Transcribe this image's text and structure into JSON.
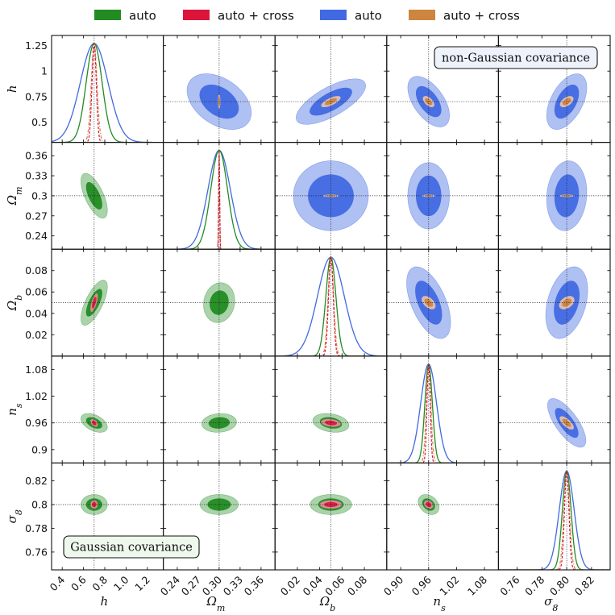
{
  "chart_data": {
    "type": "corner",
    "legend": [
      {
        "label": "auto",
        "color": "#228b22"
      },
      {
        "label": "auto + cross",
        "color": "#dc143c"
      },
      {
        "label": "auto",
        "color": "#4169e1"
      },
      {
        "label": "auto + cross",
        "color": "#cd853f"
      }
    ],
    "annotations": {
      "upper": "non-Gaussian covariance",
      "lower": "Gaussian covariance"
    },
    "parameters": [
      {
        "name": "h",
        "label": "h",
        "range": [
          0.3,
          1.35
        ],
        "fiducial": 0.7,
        "ticks": [
          "0.4",
          "0.6",
          "0.8",
          "1.0",
          "1.2"
        ],
        "tick_values": [
          0.4,
          0.6,
          0.8,
          1.0,
          1.2
        ],
        "yticks": [
          "0.5",
          "0.75",
          "1",
          "1.25"
        ],
        "ytick_values": [
          0.5,
          0.75,
          1.0,
          1.25
        ]
      },
      {
        "name": "Om",
        "label": "Ωm",
        "range": [
          0.22,
          0.38
        ],
        "fiducial": 0.3,
        "ticks": [
          "0.24",
          "0.27",
          "0.30",
          "0.33",
          "0.36"
        ],
        "tick_values": [
          0.24,
          0.27,
          0.3,
          0.33,
          0.36
        ],
        "yticks": [
          "0.24",
          "0.27",
          "0.3",
          "0.33",
          "0.36"
        ],
        "ytick_values": [
          0.24,
          0.27,
          0.3,
          0.33,
          0.36
        ]
      },
      {
        "name": "Ob",
        "label": "Ωb",
        "range": [
          0.0,
          0.1
        ],
        "fiducial": 0.05,
        "ticks": [
          "0.02",
          "0.04",
          "0.06",
          "0.08"
        ],
        "tick_values": [
          0.02,
          0.04,
          0.06,
          0.08
        ],
        "yticks": [
          "0.02",
          "0.04",
          "0.06",
          "0.08"
        ],
        "ytick_values": [
          0.02,
          0.04,
          0.06,
          0.08
        ]
      },
      {
        "name": "ns",
        "label": "ns",
        "range": [
          0.87,
          1.11
        ],
        "fiducial": 0.96,
        "ticks": [
          "0.90",
          "0.96",
          "1.02",
          "1.08"
        ],
        "tick_values": [
          0.9,
          0.96,
          1.02,
          1.08
        ],
        "yticks": [
          "0.9",
          "0.96",
          "1.02",
          "1.08"
        ],
        "ytick_values": [
          0.9,
          0.96,
          1.02,
          1.08
        ]
      },
      {
        "name": "s8",
        "label": "σ8",
        "range": [
          0.745,
          0.835
        ],
        "fiducial": 0.8,
        "ticks": [
          "0.76",
          "0.78",
          "0.80",
          "0.82"
        ],
        "tick_values": [
          0.76,
          0.78,
          0.8,
          0.82
        ],
        "yticks": [
          "0.76",
          "0.78",
          "0.8",
          "0.82"
        ],
        "ytick_values": [
          0.76,
          0.78,
          0.8,
          0.82
        ]
      }
    ],
    "marginals": {
      "auto_gaussian_sigma": [
        0.075,
        0.012,
        0.0045,
        0.008,
        0.0035
      ],
      "cross_gaussian_sigma": [
        0.02,
        0.0007,
        0.0021,
        0.0035,
        0.0018
      ],
      "auto_nongaussian_sigma": [
        0.13,
        0.016,
        0.012,
        0.017,
        0.006
      ],
      "cross_nongaussian_sigma": [
        0.027,
        0.0007,
        0.0025,
        0.005,
        0.0023
      ]
    },
    "lower_ellipses_gaussian": [
      {
        "x": "h",
        "y": "Om",
        "auto": {
          "sx": 0.05,
          "sy": 0.0135,
          "rho": -0.65
        },
        "cross": null
      },
      {
        "x": "h",
        "y": "Ob",
        "auto": {
          "sx": 0.05,
          "sy": 0.0085,
          "rho": 0.7
        },
        "cross": {
          "sx": 0.014,
          "sy": 0.0035,
          "rho": 0.7
        }
      },
      {
        "x": "Om",
        "y": "Ob",
        "auto": {
          "sx": 0.009,
          "sy": 0.0075,
          "rho": 0.1
        },
        "cross": null
      },
      {
        "x": "h",
        "y": "ns",
        "auto": {
          "sx": 0.05,
          "sy": 0.0085,
          "rho": -0.45
        },
        "cross": {
          "sx": 0.014,
          "sy": 0.0035,
          "rho": -0.45
        }
      },
      {
        "x": "Om",
        "y": "ns",
        "auto": {
          "sx": 0.01,
          "sy": 0.0085,
          "rho": 0.1
        },
        "cross": null
      },
      {
        "x": "Ob",
        "y": "ns",
        "auto": {
          "sx": 0.0065,
          "sy": 0.0085,
          "rho": -0.25
        },
        "cross": {
          "sx": 0.0035,
          "sy": 0.0035,
          "rho": -0.25
        }
      },
      {
        "x": "h",
        "y": "s8",
        "auto": {
          "sx": 0.05,
          "sy": 0.0034,
          "rho": 0.0
        },
        "cross": {
          "sx": 0.014,
          "sy": 0.0014,
          "rho": 0.0
        }
      },
      {
        "x": "Om",
        "y": "s8",
        "auto": {
          "sx": 0.011,
          "sy": 0.0034,
          "rho": 0.0
        },
        "cross": null
      },
      {
        "x": "Ob",
        "y": "s8",
        "auto": {
          "sx": 0.0075,
          "sy": 0.0034,
          "rho": 0.0
        },
        "cross": {
          "sx": 0.004,
          "sy": 0.0014,
          "rho": 0.0
        }
      },
      {
        "x": "ns",
        "y": "s8",
        "auto": {
          "sx": 0.009,
          "sy": 0.0034,
          "rho": -0.3
        },
        "cross": {
          "sx": 0.004,
          "sy": 0.0014,
          "rho": -0.3
        }
      }
    ],
    "upper_ellipses_nongaussian": [
      {
        "x": "Om",
        "y": "h",
        "auto": {
          "sx": 0.0185,
          "sy": 0.11,
          "rho": -0.4
        },
        "cross": {
          "sx": 0.0007,
          "sy": 0.03,
          "rho": 0.0
        }
      },
      {
        "x": "Ob",
        "y": "h",
        "auto": {
          "sx": 0.0125,
          "sy": 0.09,
          "rho": 0.7
        },
        "cross": {
          "sx": 0.0035,
          "sy": 0.022,
          "rho": 0.7
        }
      },
      {
        "x": "ns",
        "y": "h",
        "auto": {
          "sx": 0.018,
          "sy": 0.1,
          "rho": -0.55
        },
        "cross": {
          "sx": 0.005,
          "sy": 0.022,
          "rho": -0.55
        }
      },
      {
        "x": "s8",
        "y": "h",
        "auto": {
          "sx": 0.0065,
          "sy": 0.11,
          "rho": 0.5
        },
        "cross": {
          "sx": 0.0022,
          "sy": 0.022,
          "rho": 0.5
        }
      },
      {
        "x": "Ob",
        "y": "Om",
        "auto": {
          "sx": 0.0135,
          "sy": 0.021,
          "rho": 0.0
        },
        "cross": {
          "sx": 0.003,
          "sy": 0.0007,
          "rho": 0.0
        }
      },
      {
        "x": "ns",
        "y": "Om",
        "auto": {
          "sx": 0.018,
          "sy": 0.02,
          "rho": 0.0
        },
        "cross": {
          "sx": 0.006,
          "sy": 0.0007,
          "rho": 0.0
        }
      },
      {
        "x": "s8",
        "y": "Om",
        "auto": {
          "sx": 0.0065,
          "sy": 0.021,
          "rho": 0.1
        },
        "cross": {
          "sx": 0.0025,
          "sy": 0.0007,
          "rho": 0.0
        }
      },
      {
        "x": "ns",
        "y": "Ob",
        "auto": {
          "sx": 0.019,
          "sy": 0.0135,
          "rho": -0.55
        },
        "cross": {
          "sx": 0.006,
          "sy": 0.0025,
          "rho": -0.5
        }
      },
      {
        "x": "s8",
        "y": "Ob",
        "auto": {
          "sx": 0.0068,
          "sy": 0.0135,
          "rho": 0.35
        },
        "cross": {
          "sx": 0.0025,
          "sy": 0.0025,
          "rho": 0.4
        }
      },
      {
        "x": "s8",
        "y": "ns",
        "auto": {
          "sx": 0.0062,
          "sy": 0.022,
          "rho": -0.72
        },
        "cross": {
          "sx": 0.0023,
          "sy": 0.006,
          "rho": -0.7
        }
      }
    ]
  }
}
